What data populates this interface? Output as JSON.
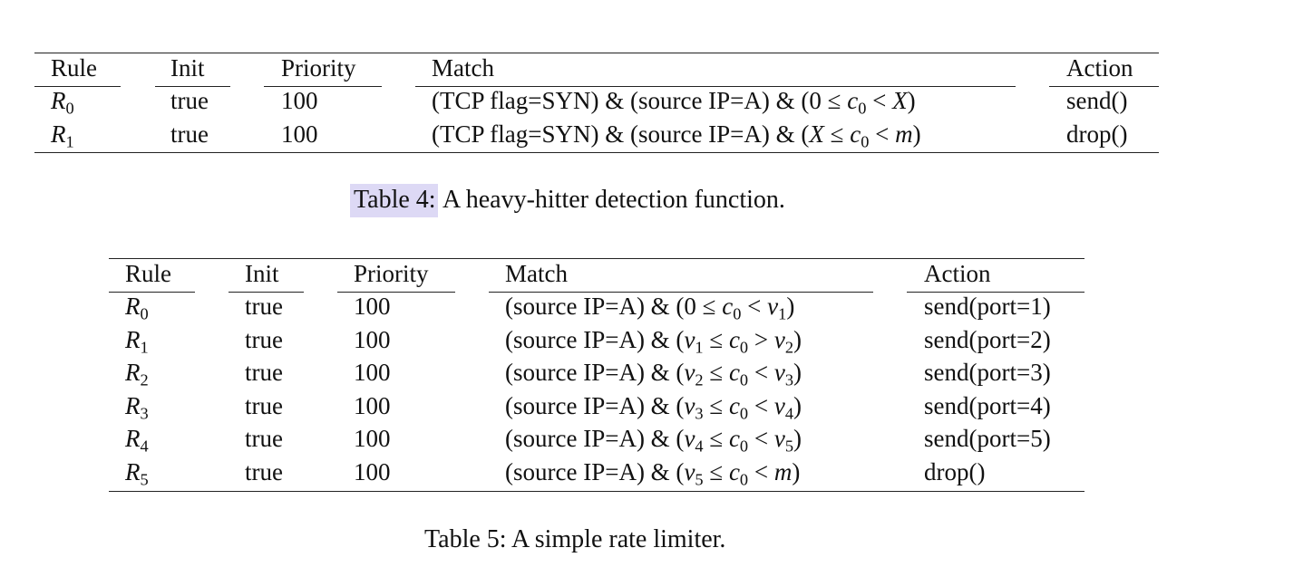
{
  "table4": {
    "headers": [
      "Rule",
      "Init",
      "Priority",
      "Match",
      "Action"
    ],
    "rows": [
      {
        "rule": "R0",
        "init": "true",
        "priority": "100",
        "match": "(TCP flag=SYN) & (source IP=A) & (0 ≤ c0 < X)",
        "action": "send()"
      },
      {
        "rule": "R1",
        "init": "true",
        "priority": "100",
        "match": "(TCP flag=SYN) & (source IP=A) & (X ≤ c0 < m)",
        "action": "drop()"
      }
    ],
    "caption_label": "Table 4:",
    "caption_text": "A heavy-hitter detection function."
  },
  "table5": {
    "headers": [
      "Rule",
      "Init",
      "Priority",
      "Match",
      "Action"
    ],
    "rows": [
      {
        "rule": "R0",
        "init": "true",
        "priority": "100",
        "match": "(source IP=A) & (0 ≤ c0 < v1)",
        "action": "send(port=1)"
      },
      {
        "rule": "R1",
        "init": "true",
        "priority": "100",
        "match": "(source IP=A) & (v1 ≤ c0 > v2)",
        "action": "send(port=2)"
      },
      {
        "rule": "R2",
        "init": "true",
        "priority": "100",
        "match": "(source IP=A) & (v2 ≤ c0 < v3)",
        "action": "send(port=3)"
      },
      {
        "rule": "R3",
        "init": "true",
        "priority": "100",
        "match": "(source IP=A) & (v3 ≤ c0 < v4)",
        "action": "send(port=4)"
      },
      {
        "rule": "R4",
        "init": "true",
        "priority": "100",
        "match": "(source IP=A) & (v4 ≤ c0 < v5)",
        "action": "send(port=5)"
      },
      {
        "rule": "R5",
        "init": "true",
        "priority": "100",
        "match": "(source IP=A) & (v5 ≤ c0 < m)",
        "action": "drop()"
      }
    ],
    "caption_label": "Table 5:",
    "caption_text": "A simple rate limiter."
  }
}
